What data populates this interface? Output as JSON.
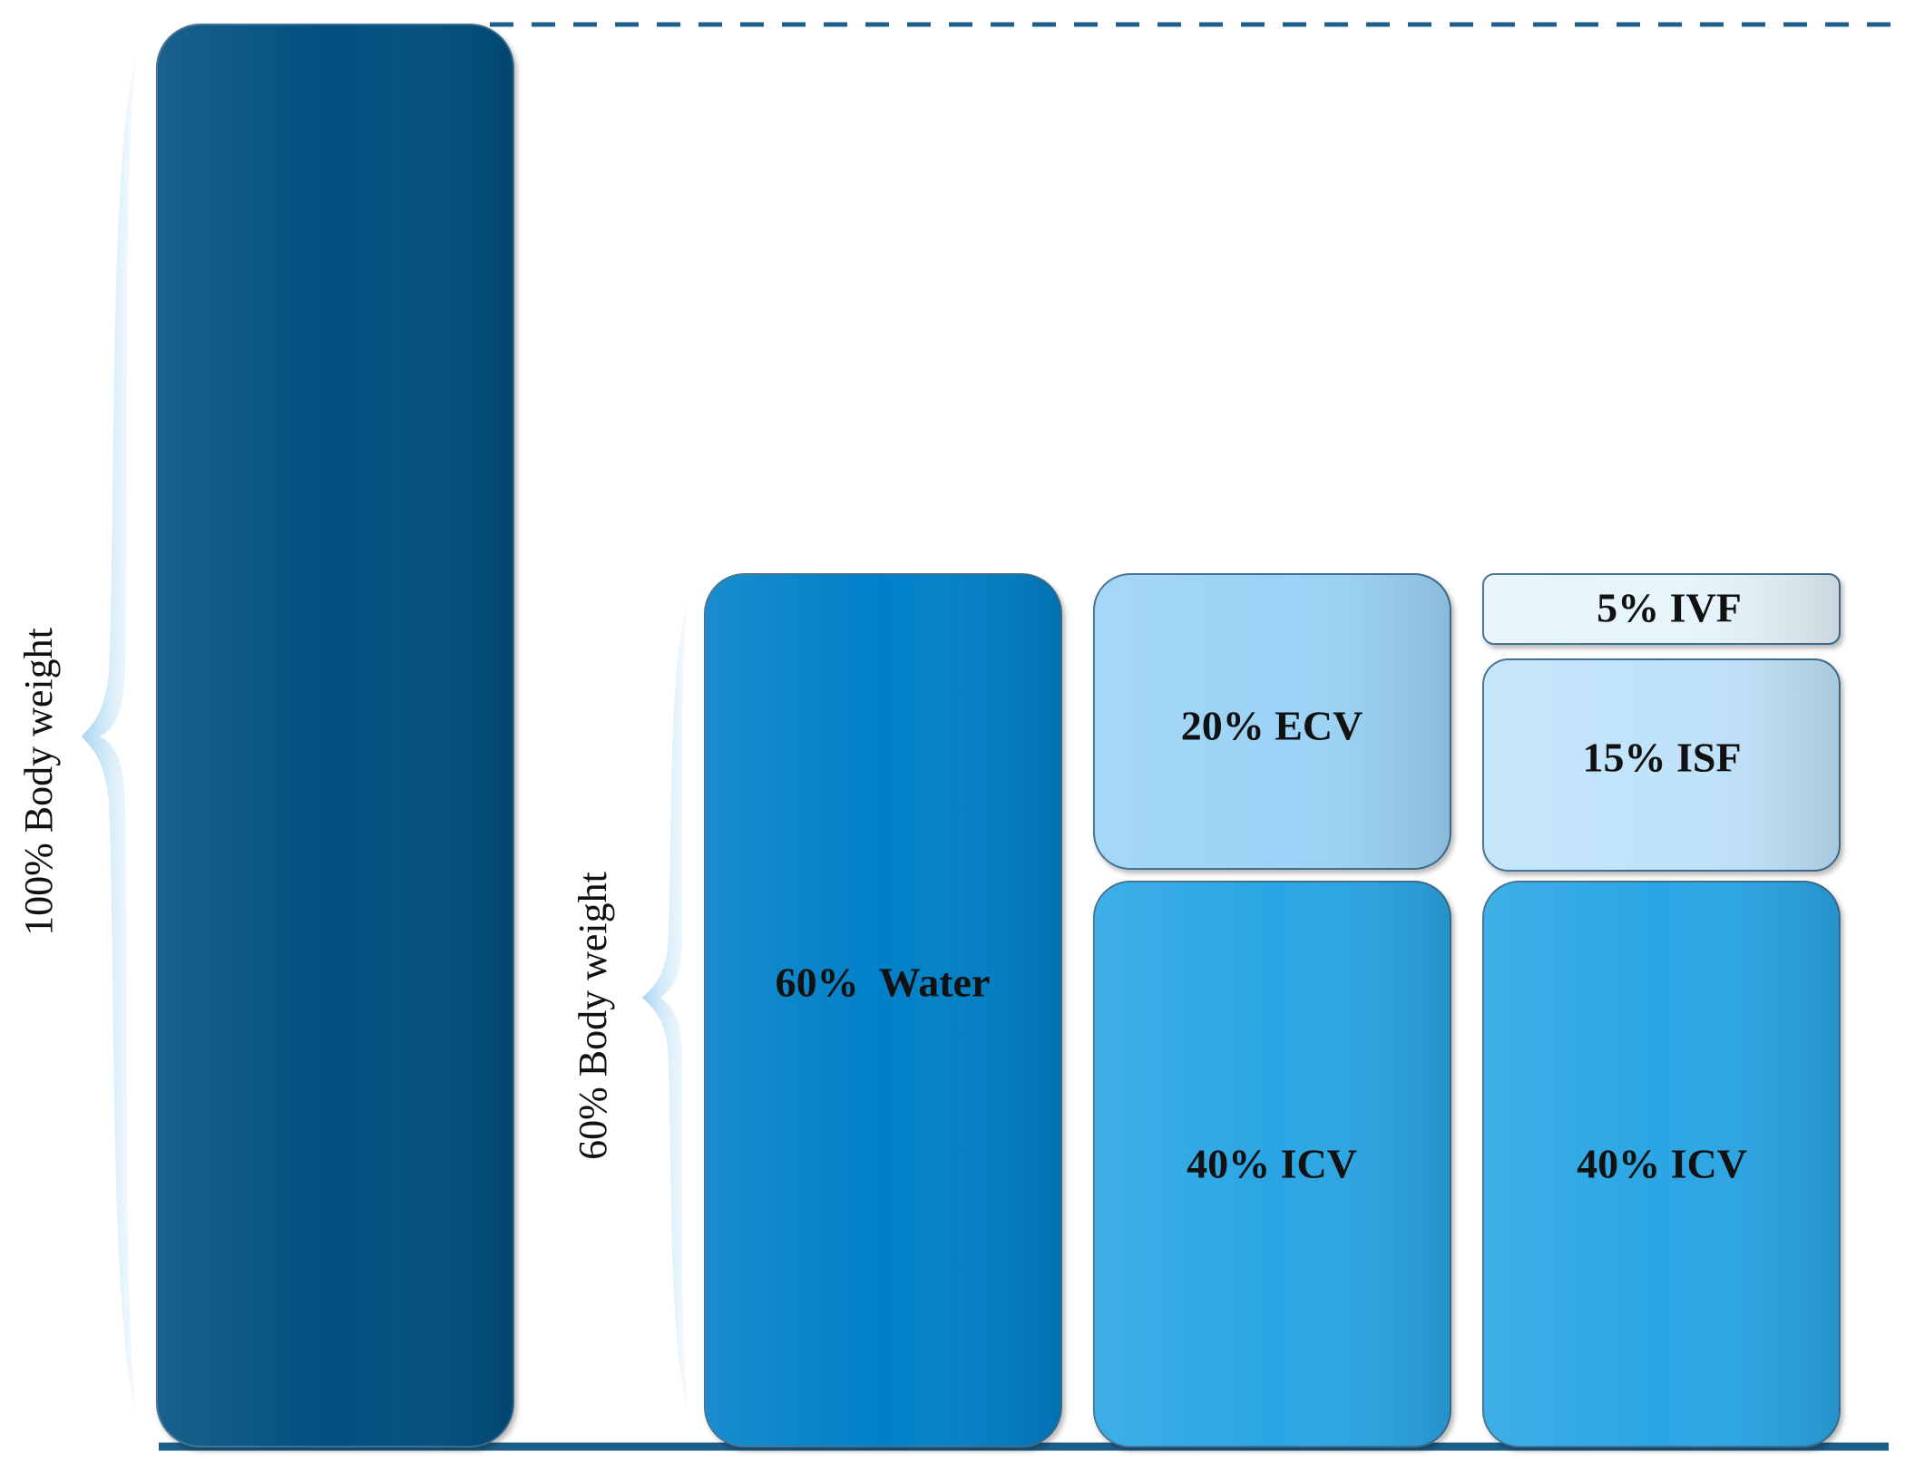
{
  "diagram": {
    "labels": {
      "total_body_weight": "100% Body weight",
      "water_body_weight": "60% Body weight"
    },
    "blocks": {
      "total_body": {
        "label": "",
        "percent": 100,
        "color": "#02507f"
      },
      "water": {
        "label": "60%  Water",
        "percent": 60,
        "color": "#0280c8"
      },
      "ecv": {
        "label": "20% ECV",
        "percent": 20,
        "color": "#9bd3f6"
      },
      "icv_middle": {
        "label": "40% ICV",
        "percent": 40,
        "color": "#2aa6e4"
      },
      "ivf": {
        "label": "5% IVF",
        "percent": 5,
        "color": "#e6f4fc"
      },
      "isf": {
        "label": "15% ISF",
        "percent": 15,
        "color": "#c0e3fa"
      },
      "icv_right": {
        "label": "40% ICV",
        "percent": 40,
        "color": "#2aa6e4"
      }
    },
    "colors": {
      "baseline": "#1d5f8a",
      "dashed_line": "#1d5f8a",
      "brace": "#b9dcf2",
      "box_border": "#3c6e92"
    }
  }
}
